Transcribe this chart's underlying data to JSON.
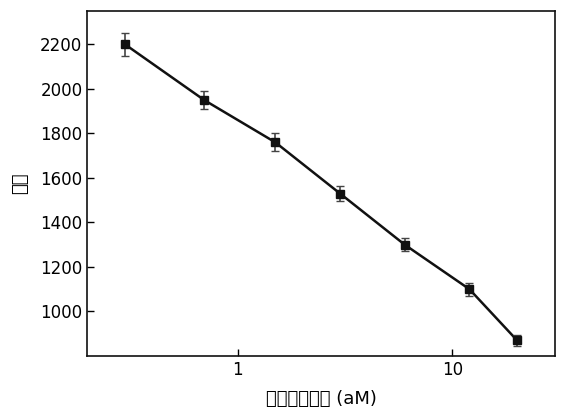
{
  "x": [
    0.3,
    0.7,
    1.5,
    3.0,
    6.0,
    12.0,
    20.0
  ],
  "y": [
    2200,
    1950,
    1760,
    1530,
    1300,
    1100,
    870
  ],
  "yerr": [
    50,
    40,
    40,
    35,
    30,
    30,
    25
  ],
  "xlabel": "甲胎蛋白浓度 (aM)",
  "ylabel": "强度",
  "xlim": [
    0.2,
    30
  ],
  "ylim": [
    800,
    2350
  ],
  "yticks": [
    1000,
    1200,
    1400,
    1600,
    1800,
    2000,
    2200
  ],
  "xticks": [
    1,
    10
  ],
  "xticklabels": [
    "1",
    "10"
  ],
  "marker": "s",
  "marker_color": "#111111",
  "line_color": "#111111",
  "marker_size": 6,
  "line_width": 1.8,
  "ecolor": "#444444",
  "capsize": 3,
  "label_fontsize": 13,
  "tick_fontsize": 12,
  "background_color": "#ffffff"
}
